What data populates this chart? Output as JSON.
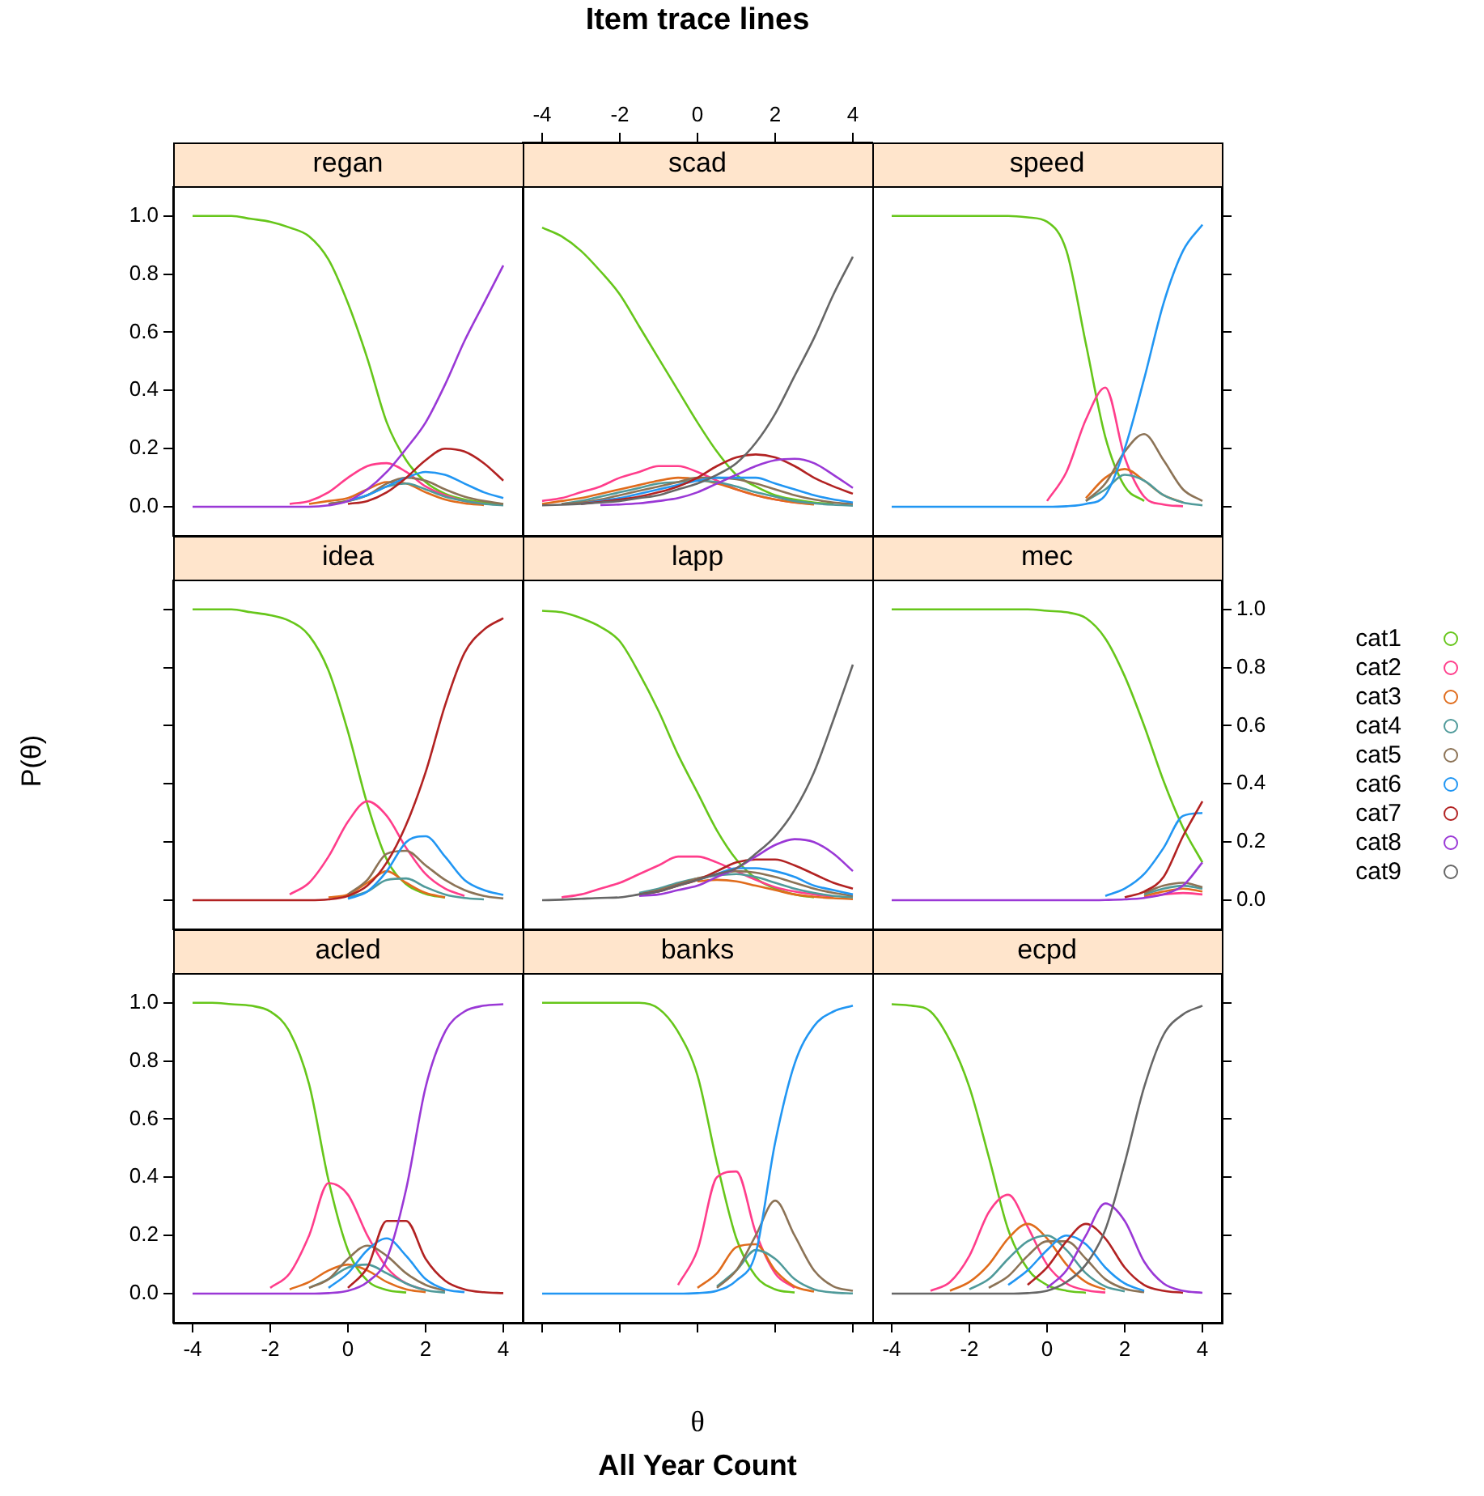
{
  "chart_data": [
    {
      "type": "line",
      "title": "regan",
      "x": [
        -4,
        -3.5,
        -3,
        -2.5,
        -2,
        -1.5,
        -1,
        -0.5,
        0,
        0.5,
        1,
        1.5,
        2,
        2.5,
        3,
        3.5,
        4
      ],
      "xlim": [
        -4.5,
        4.5
      ],
      "ylim": [
        -0.1,
        1.1
      ],
      "yticks": [
        {
          "value": 0,
          "label": "0.0"
        },
        0.2,
        0.4,
        0.6,
        0.8,
        {
          "value": 1,
          "label": "1.0"
        }
      ],
      "tick_labels": "y",
      "series": [
        {
          "color": "#66c61a",
          "values": [
            1,
            1,
            1,
            0.99,
            0.98,
            0.96,
            0.93,
            0.85,
            0.7,
            0.51,
            0.29,
            0.16,
            0.085,
            0.045,
            0.025,
            0.015,
            0.01
          ]
        },
        {
          "color": "#ff3d8b",
          "values": [
            null,
            null,
            null,
            null,
            null,
            0.01,
            0.02,
            0.05,
            0.1,
            0.14,
            0.15,
            0.12,
            0.07,
            0.04,
            0.02,
            0.01,
            null
          ]
        },
        {
          "color": "#e06c1c",
          "values": [
            null,
            null,
            null,
            null,
            null,
            null,
            0.01,
            0.02,
            0.03,
            0.06,
            0.085,
            0.08,
            0.05,
            0.025,
            0.012,
            0.006,
            null
          ]
        },
        {
          "color": "#4f9a9a",
          "values": [
            null,
            null,
            null,
            null,
            null,
            null,
            null,
            0.01,
            0.02,
            0.04,
            0.07,
            0.08,
            0.06,
            0.035,
            0.02,
            0.01,
            0.005
          ]
        },
        {
          "color": "#8c7356",
          "values": [
            null,
            null,
            null,
            null,
            null,
            null,
            null,
            0.01,
            0.02,
            0.04,
            0.08,
            0.1,
            0.09,
            0.06,
            0.035,
            0.02,
            0.01
          ]
        },
        {
          "color": "#2196f3",
          "values": [
            null,
            null,
            null,
            null,
            null,
            null,
            null,
            null,
            0.02,
            0.04,
            0.07,
            0.1,
            0.12,
            0.11,
            0.08,
            0.05,
            0.03
          ]
        },
        {
          "color": "#b22222",
          "values": [
            null,
            null,
            null,
            null,
            null,
            null,
            null,
            null,
            0.01,
            0.02,
            0.05,
            0.1,
            0.16,
            0.2,
            0.19,
            0.15,
            0.09
          ]
        },
        {
          "color": "#9a38d6",
          "values": [
            0,
            0,
            0,
            0,
            0,
            0,
            0,
            0.005,
            0.02,
            0.06,
            0.12,
            0.2,
            0.29,
            0.42,
            0.57,
            0.7,
            0.83
          ]
        }
      ]
    },
    {
      "type": "line",
      "title": "scad",
      "x": [
        -4,
        -3.5,
        -3,
        -2.5,
        -2,
        -1.5,
        -1,
        -0.5,
        0,
        0.5,
        1,
        1.5,
        2,
        2.5,
        3,
        3.5,
        4
      ],
      "xlim": [
        -4.5,
        4.5
      ],
      "x2lim": [
        -4.5,
        4.5
      ],
      "x2ticks": [
        -4,
        -2,
        0,
        2,
        4
      ],
      "ylim": [
        -0.1,
        1.1
      ],
      "tick_labels": "x",
      "series": [
        {
          "color": "#66c61a",
          "values": [
            0.96,
            0.93,
            0.88,
            0.81,
            0.73,
            0.62,
            0.51,
            0.4,
            0.29,
            0.19,
            0.11,
            0.07,
            0.04,
            0.025,
            0.015,
            0.01,
            null
          ]
        },
        {
          "color": "#ff3d8b",
          "values": [
            0.02,
            0.03,
            0.05,
            0.07,
            0.1,
            0.12,
            0.14,
            0.14,
            0.12,
            0.09,
            0.06,
            0.04,
            0.025,
            0.015,
            0.01,
            null,
            null
          ]
        },
        {
          "color": "#e06c1c",
          "values": [
            0.01,
            0.02,
            0.03,
            0.045,
            0.06,
            0.075,
            0.09,
            0.1,
            0.095,
            0.08,
            0.06,
            0.04,
            0.025,
            0.015,
            0.008,
            null,
            null
          ]
        },
        {
          "color": "#4f9a9a",
          "values": [
            null,
            0.01,
            0.02,
            0.035,
            0.05,
            0.065,
            0.08,
            0.085,
            0.09,
            0.085,
            0.07,
            0.05,
            0.035,
            0.02,
            0.012,
            0.007,
            0.004
          ]
        },
        {
          "color": "#8c7356",
          "values": [
            null,
            0.01,
            0.015,
            0.025,
            0.04,
            0.055,
            0.07,
            0.085,
            0.1,
            0.1,
            0.095,
            0.08,
            0.06,
            0.04,
            0.025,
            0.015,
            0.01
          ]
        },
        {
          "color": "#2196f3",
          "values": [
            null,
            null,
            0.01,
            0.02,
            0.03,
            0.045,
            0.06,
            0.075,
            0.09,
            0.1,
            0.1,
            0.1,
            0.08,
            0.06,
            0.04,
            0.025,
            0.015
          ]
        },
        {
          "color": "#b22222",
          "values": [
            null,
            null,
            0.01,
            0.017,
            0.025,
            0.035,
            0.05,
            0.07,
            0.1,
            0.14,
            0.17,
            0.18,
            0.17,
            0.14,
            0.1,
            0.07,
            0.045
          ]
        },
        {
          "color": "#9a38d6",
          "values": [
            null,
            null,
            null,
            0.006,
            0.008,
            0.012,
            0.02,
            0.03,
            0.05,
            0.08,
            0.11,
            0.14,
            0.16,
            0.165,
            0.15,
            0.11,
            0.065
          ]
        },
        {
          "color": "#666666",
          "values": [
            0.005,
            0.007,
            0.01,
            0.015,
            0.02,
            0.03,
            0.04,
            0.06,
            0.08,
            0.11,
            0.15,
            0.22,
            0.32,
            0.45,
            0.58,
            0.73,
            0.86
          ]
        }
      ]
    },
    {
      "type": "line",
      "title": "speed",
      "x": [
        -4,
        -3.5,
        -3,
        -2.5,
        -2,
        -1.5,
        -1,
        -0.5,
        0,
        0.5,
        1,
        1.5,
        2,
        2.5,
        3,
        3.5,
        4
      ],
      "xlim": [
        -4.5,
        4.5
      ],
      "y2lim": [
        -0.1,
        1.1
      ],
      "y2ticks": [
        {
          "value": 0,
          "label": null
        },
        {
          "value": 0.2,
          "label": null
        },
        {
          "value": 0.4,
          "label": null
        },
        {
          "value": 0.6,
          "label": null
        },
        {
          "value": 0.8,
          "label": null
        },
        {
          "value": 1,
          "label": null
        }
      ],
      "tick_labels": false,
      "series": [
        {
          "color": "#66c61a",
          "axis": "y2",
          "values": [
            1,
            1,
            1,
            1,
            1,
            1,
            1,
            0.995,
            0.98,
            0.88,
            0.56,
            0.24,
            0.07,
            0.02,
            null,
            null,
            null
          ]
        },
        {
          "color": "#ff3d8b",
          "axis": "y2",
          "values": [
            null,
            null,
            null,
            null,
            null,
            null,
            null,
            null,
            0.02,
            0.12,
            0.3,
            0.41,
            0.17,
            0.035,
            0.008,
            0.002,
            null
          ]
        },
        {
          "color": "#e06c1c",
          "axis": "y2",
          "values": [
            null,
            null,
            null,
            null,
            null,
            null,
            null,
            null,
            null,
            null,
            0.03,
            0.1,
            0.13,
            0.09,
            0.04,
            0.015,
            null
          ]
        },
        {
          "color": "#4f9a9a",
          "axis": "y2",
          "values": [
            null,
            null,
            null,
            null,
            null,
            null,
            null,
            null,
            null,
            null,
            0.02,
            0.06,
            0.11,
            0.09,
            0.04,
            0.015,
            0.005
          ]
        },
        {
          "color": "#8c7356",
          "axis": "y2",
          "values": [
            null,
            null,
            null,
            null,
            null,
            null,
            null,
            null,
            null,
            null,
            0.02,
            0.08,
            0.19,
            0.25,
            0.16,
            0.06,
            0.02
          ]
        },
        {
          "color": "#2196f3",
          "axis": "y2",
          "values": [
            0,
            0,
            0,
            0,
            0,
            0,
            0,
            0,
            0,
            0.002,
            0.01,
            0.04,
            0.2,
            0.44,
            0.7,
            0.88,
            0.97
          ]
        }
      ]
    },
    {
      "type": "line",
      "title": "idea",
      "x": [
        -4,
        -3.5,
        -3,
        -2.5,
        -2,
        -1.5,
        -1,
        -0.5,
        0,
        0.5,
        1,
        1.5,
        2,
        2.5,
        3,
        3.5,
        4
      ],
      "xlim": [
        -4.5,
        4.5
      ],
      "ylim": [
        -0.1,
        1.1
      ],
      "yticks": [
        {
          "value": 0,
          "label": null
        },
        {
          "value": 0.2,
          "label": null
        },
        {
          "value": 0.4,
          "label": null
        },
        {
          "value": 0.6,
          "label": null
        },
        {
          "value": 0.8,
          "label": null
        },
        {
          "value": 1,
          "label": null
        }
      ],
      "tick_labels": false,
      "series": [
        {
          "color": "#66c61a",
          "values": [
            1,
            1,
            1,
            0.99,
            0.98,
            0.96,
            0.91,
            0.79,
            0.58,
            0.33,
            0.14,
            0.055,
            0.022,
            0.009,
            null,
            null,
            null
          ]
        },
        {
          "color": "#ff3d8b",
          "values": [
            null,
            null,
            null,
            null,
            null,
            0.02,
            0.06,
            0.15,
            0.27,
            0.34,
            0.29,
            0.18,
            0.09,
            0.04,
            0.015,
            null,
            null
          ]
        },
        {
          "color": "#e06c1c",
          "values": [
            null,
            null,
            null,
            null,
            null,
            null,
            null,
            0.01,
            0.02,
            0.06,
            0.1,
            0.06,
            0.025,
            0.01,
            null,
            null,
            null
          ]
        },
        {
          "color": "#4f9a9a",
          "values": [
            null,
            null,
            null,
            null,
            null,
            null,
            null,
            null,
            0.01,
            0.03,
            0.07,
            0.075,
            0.045,
            0.02,
            0.008,
            0.003,
            null
          ]
        },
        {
          "color": "#8c7356",
          "values": [
            null,
            null,
            null,
            null,
            null,
            null,
            null,
            null,
            0.02,
            0.07,
            0.16,
            0.17,
            0.12,
            0.07,
            0.035,
            0.015,
            0.006
          ]
        },
        {
          "color": "#2196f3",
          "values": [
            null,
            null,
            null,
            null,
            null,
            null,
            null,
            null,
            0.005,
            0.03,
            0.1,
            0.2,
            0.22,
            0.15,
            0.07,
            0.035,
            0.018
          ]
        },
        {
          "color": "#b22222",
          "values": [
            0,
            0,
            0,
            0,
            0,
            0,
            0,
            0.003,
            0.015,
            0.05,
            0.13,
            0.26,
            0.44,
            0.67,
            0.85,
            0.93,
            0.97
          ]
        }
      ]
    },
    {
      "type": "line",
      "title": "lapp",
      "x": [
        -4,
        -3.5,
        -3,
        -2.5,
        -2,
        -1.5,
        -1,
        -0.5,
        0,
        0.5,
        1,
        1.5,
        2,
        2.5,
        3,
        3.5,
        4
      ],
      "xlim": [
        -4.5,
        4.5
      ],
      "ylim": [
        -0.1,
        1.1
      ],
      "tick_labels": false,
      "legend": "right",
      "series": [
        {
          "name": "cat1",
          "color": "#66c61a",
          "values": [
            0.995,
            0.99,
            0.97,
            0.94,
            0.89,
            0.78,
            0.65,
            0.5,
            0.37,
            0.24,
            0.14,
            0.075,
            0.04,
            0.02,
            0.01,
            null,
            null
          ]
        },
        {
          "name": "cat2",
          "color": "#ff3d8b",
          "values": [
            null,
            0.01,
            0.02,
            0.04,
            0.06,
            0.09,
            0.12,
            0.15,
            0.15,
            0.13,
            0.1,
            0.07,
            0.045,
            0.03,
            0.02,
            0.012,
            null
          ]
        },
        {
          "name": "cat3",
          "color": "#e06c1c",
          "values": [
            null,
            null,
            null,
            null,
            null,
            null,
            null,
            null,
            0.065,
            0.07,
            0.065,
            0.05,
            0.035,
            0.02,
            0.012,
            0.007,
            0.004
          ]
        },
        {
          "name": "cat4",
          "color": "#4f9a9a",
          "values": [
            null,
            null,
            null,
            null,
            null,
            0.025,
            0.04,
            0.06,
            0.075,
            0.085,
            0.09,
            0.08,
            0.06,
            0.04,
            0.025,
            0.015,
            0.01
          ]
        },
        {
          "name": "cat5",
          "color": "#8c7356",
          "values": [
            null,
            null,
            null,
            null,
            null,
            0.02,
            0.035,
            0.055,
            0.075,
            0.09,
            0.1,
            0.095,
            0.08,
            0.06,
            0.04,
            0.025,
            0.015
          ]
        },
        {
          "name": "cat6",
          "color": "#2196f3",
          "values": [
            null,
            null,
            null,
            null,
            null,
            null,
            null,
            null,
            0.07,
            0.09,
            0.11,
            0.11,
            0.1,
            0.08,
            0.05,
            0.035,
            0.02
          ]
        },
        {
          "name": "cat7",
          "color": "#b22222",
          "values": [
            null,
            null,
            null,
            null,
            null,
            0.02,
            0.03,
            0.05,
            0.07,
            0.1,
            0.13,
            0.14,
            0.14,
            0.12,
            0.09,
            0.06,
            0.04
          ]
        },
        {
          "name": "cat8",
          "color": "#9a38d6",
          "values": [
            null,
            null,
            null,
            null,
            null,
            0.015,
            0.02,
            0.035,
            0.05,
            0.08,
            0.11,
            0.15,
            0.19,
            0.21,
            0.2,
            0.16,
            0.1
          ]
        },
        {
          "name": "cat9",
          "color": "#666666",
          "values": [
            0,
            0.002,
            0.005,
            0.008,
            0.01,
            0.02,
            0.03,
            0.05,
            0.07,
            0.09,
            0.11,
            0.16,
            0.22,
            0.31,
            0.44,
            0.62,
            0.81
          ]
        }
      ]
    },
    {
      "type": "line",
      "title": "mec",
      "x": [
        -4,
        -3.5,
        -3,
        -2.5,
        -2,
        -1.5,
        -1,
        -0.5,
        0,
        0.5,
        1,
        1.5,
        2,
        2.5,
        3,
        3.5,
        4
      ],
      "xlim": [
        -4.5,
        4.5
      ],
      "y2lim": [
        -0.1,
        1.1
      ],
      "y2ticks": [
        {
          "value": 0,
          "label": "0.0"
        },
        0.2,
        0.4,
        0.6,
        0.8,
        {
          "value": 1,
          "label": "1.0"
        }
      ],
      "tick_labels": "y",
      "series": [
        {
          "color": "#66c61a",
          "axis": "y2",
          "values": [
            1,
            1,
            1,
            1,
            1,
            1,
            1,
            1,
            0.995,
            0.99,
            0.97,
            0.9,
            0.77,
            0.6,
            0.41,
            0.25,
            0.13
          ]
        },
        {
          "color": "#ff3d8b",
          "axis": "y2",
          "values": [
            null,
            null,
            null,
            null,
            null,
            null,
            null,
            null,
            null,
            null,
            null,
            null,
            null,
            0.01,
            0.02,
            0.025,
            0.02
          ]
        },
        {
          "color": "#e06c1c",
          "axis": "y2",
          "values": [
            null,
            null,
            null,
            null,
            null,
            null,
            null,
            null,
            null,
            null,
            null,
            null,
            null,
            0.015,
            0.03,
            0.04,
            0.03
          ]
        },
        {
          "color": "#4f9a9a",
          "axis": "y2",
          "values": [
            null,
            null,
            null,
            null,
            null,
            null,
            null,
            null,
            null,
            null,
            null,
            null,
            null,
            0.02,
            0.04,
            0.05,
            0.04
          ]
        },
        {
          "color": "#8c7356",
          "axis": "y2",
          "values": [
            null,
            null,
            null,
            null,
            null,
            null,
            null,
            null,
            null,
            null,
            null,
            null,
            null,
            0.025,
            0.05,
            0.06,
            0.045
          ]
        },
        {
          "color": "#2196f3",
          "axis": "y2",
          "values": [
            null,
            null,
            null,
            null,
            null,
            null,
            null,
            null,
            null,
            null,
            null,
            0.015,
            0.04,
            0.09,
            0.18,
            0.29,
            0.3
          ]
        },
        {
          "color": "#b22222",
          "axis": "y2",
          "values": [
            null,
            null,
            null,
            null,
            null,
            null,
            null,
            null,
            null,
            null,
            null,
            null,
            0.01,
            0.03,
            0.08,
            0.22,
            0.34
          ]
        },
        {
          "color": "#9a38d6",
          "axis": "y2",
          "values": [
            0,
            0,
            0,
            0,
            0,
            0,
            0,
            0,
            0,
            0,
            0,
            0.001,
            0.003,
            0.008,
            0.02,
            0.05,
            0.13
          ]
        }
      ]
    },
    {
      "type": "line",
      "title": "acled",
      "x": [
        -4,
        -3.5,
        -3,
        -2.5,
        -2,
        -1.5,
        -1,
        -0.5,
        0,
        0.5,
        1,
        1.5,
        2,
        2.5,
        3,
        3.5,
        4
      ],
      "xlim": [
        -4.5,
        4.5
      ],
      "xticks": [
        -4,
        -2,
        0,
        2,
        4
      ],
      "ylim": [
        -0.1,
        1.1
      ],
      "yticks": [
        {
          "value": 0,
          "label": "0.0"
        },
        0.2,
        0.4,
        0.6,
        0.8,
        {
          "value": 1,
          "label": "1.0"
        }
      ],
      "series": [
        {
          "color": "#66c61a",
          "values": [
            1,
            1,
            0.995,
            0.99,
            0.97,
            0.9,
            0.72,
            0.39,
            0.15,
            0.045,
            0.013,
            0.004,
            null,
            null,
            null,
            null,
            null
          ]
        },
        {
          "color": "#ff3d8b",
          "values": [
            null,
            null,
            null,
            null,
            0.02,
            0.07,
            0.2,
            0.38,
            0.34,
            0.2,
            0.09,
            0.035,
            0.013,
            null,
            null,
            null,
            null
          ]
        },
        {
          "color": "#e06c1c",
          "values": [
            null,
            null,
            null,
            null,
            null,
            0.015,
            0.04,
            0.08,
            0.1,
            0.08,
            0.04,
            0.015,
            0.005,
            null,
            null,
            null,
            null
          ]
        },
        {
          "color": "#4f9a9a",
          "values": [
            null,
            null,
            null,
            null,
            null,
            null,
            0.02,
            0.05,
            0.09,
            0.1,
            0.07,
            0.035,
            0.012,
            0.004,
            null,
            null,
            null
          ]
        },
        {
          "color": "#8c7356",
          "values": [
            null,
            null,
            null,
            null,
            null,
            null,
            0.02,
            0.05,
            0.12,
            0.165,
            0.13,
            0.07,
            0.03,
            0.01,
            null,
            null,
            null
          ]
        },
        {
          "color": "#2196f3",
          "values": [
            null,
            null,
            null,
            null,
            null,
            null,
            null,
            0.02,
            0.07,
            0.15,
            0.19,
            0.13,
            0.05,
            0.015,
            0.005,
            null,
            null
          ]
        },
        {
          "color": "#b22222",
          "values": [
            null,
            null,
            null,
            null,
            null,
            null,
            null,
            null,
            0.02,
            0.09,
            0.25,
            0.25,
            0.12,
            0.045,
            0.015,
            0.005,
            0.002
          ]
        },
        {
          "color": "#9a38d6",
          "values": [
            0,
            0,
            0,
            0,
            0,
            0,
            0,
            0.002,
            0.01,
            0.04,
            0.12,
            0.36,
            0.71,
            0.9,
            0.97,
            0.99,
            0.995
          ]
        }
      ]
    },
    {
      "type": "line",
      "title": "banks",
      "x": [
        -4,
        -3.5,
        -3,
        -2.5,
        -2,
        -1.5,
        -1,
        -0.5,
        0,
        0.5,
        1,
        1.5,
        2,
        2.5,
        3,
        3.5,
        4
      ],
      "xlim": [
        -4.5,
        4.5
      ],
      "xticks": [
        {
          "value": -4,
          "label": null
        },
        {
          "value": -2,
          "label": null
        },
        {
          "value": 0,
          "label": null
        },
        {
          "value": 2,
          "label": null
        },
        {
          "value": 4,
          "label": null
        }
      ],
      "ylim": [
        -0.1,
        1.1
      ],
      "tick_labels": false,
      "series": [
        {
          "color": "#66c61a",
          "values": [
            1,
            1,
            1,
            1,
            1,
            1,
            0.98,
            0.9,
            0.75,
            0.45,
            0.19,
            0.06,
            0.015,
            0.004,
            null,
            null,
            null
          ]
        },
        {
          "color": "#ff3d8b",
          "values": [
            null,
            null,
            null,
            null,
            null,
            null,
            null,
            0.03,
            0.15,
            0.4,
            0.42,
            0.21,
            0.07,
            0.02,
            null,
            null,
            null
          ]
        },
        {
          "color": "#e06c1c",
          "values": [
            null,
            null,
            null,
            null,
            null,
            null,
            null,
            null,
            0.02,
            0.07,
            0.16,
            0.17,
            0.08,
            0.025,
            0.007,
            null,
            null
          ]
        },
        {
          "color": "#4f9a9a",
          "values": [
            null,
            null,
            null,
            null,
            null,
            null,
            null,
            null,
            null,
            0.025,
            0.08,
            0.15,
            0.12,
            0.05,
            0.015,
            0.004,
            0.001
          ]
        },
        {
          "color": "#8c7356",
          "values": [
            null,
            null,
            null,
            null,
            null,
            null,
            null,
            null,
            null,
            0.02,
            0.08,
            0.2,
            0.32,
            0.2,
            0.08,
            0.025,
            0.01
          ]
        },
        {
          "color": "#2196f3",
          "values": [
            0,
            0,
            0,
            0,
            0,
            0,
            0,
            0,
            0.002,
            0.01,
            0.045,
            0.14,
            0.52,
            0.79,
            0.92,
            0.97,
            0.99
          ]
        }
      ]
    },
    {
      "type": "line",
      "title": "ecpd",
      "x": [
        -4,
        -3.5,
        -3,
        -2.5,
        -2,
        -1.5,
        -1,
        -0.5,
        0,
        0.5,
        1,
        1.5,
        2,
        2.5,
        3,
        3.5,
        4
      ],
      "xlim": [
        -4.5,
        4.5
      ],
      "xticks": [
        -4,
        -2,
        0,
        2,
        4
      ],
      "y2lim": [
        -0.1,
        1.1
      ],
      "y2ticks": [
        {
          "value": 0,
          "label": null
        },
        {
          "value": 0.2,
          "label": null
        },
        {
          "value": 0.4,
          "label": null
        },
        {
          "value": 0.6,
          "label": null
        },
        {
          "value": 0.8,
          "label": null
        },
        {
          "value": 1,
          "label": null
        }
      ],
      "tick_labels": "x",
      "series": [
        {
          "color": "#66c61a",
          "axis": "y2",
          "values": [
            0.995,
            0.99,
            0.97,
            0.87,
            0.71,
            0.47,
            0.22,
            0.085,
            0.03,
            0.01,
            0.003,
            null,
            null,
            null,
            null,
            null,
            null
          ]
        },
        {
          "color": "#ff3d8b",
          "axis": "y2",
          "values": [
            null,
            null,
            0.01,
            0.04,
            0.13,
            0.28,
            0.34,
            0.23,
            0.1,
            0.035,
            0.012,
            0.004,
            null,
            null,
            null,
            null,
            null
          ]
        },
        {
          "color": "#e06c1c",
          "axis": "y2",
          "values": [
            null,
            null,
            null,
            0.01,
            0.04,
            0.1,
            0.19,
            0.24,
            0.19,
            0.1,
            0.04,
            0.014,
            null,
            null,
            null,
            null,
            null
          ]
        },
        {
          "color": "#4f9a9a",
          "axis": "y2",
          "values": [
            null,
            null,
            null,
            null,
            0.015,
            0.05,
            0.12,
            0.18,
            0.2,
            0.15,
            0.07,
            0.025,
            0.008,
            null,
            null,
            null,
            null
          ]
        },
        {
          "color": "#8c7356",
          "axis": "y2",
          "values": [
            null,
            null,
            null,
            null,
            null,
            0.02,
            0.06,
            0.13,
            0.18,
            0.18,
            0.12,
            0.05,
            0.017,
            0.005,
            null,
            null,
            null
          ]
        },
        {
          "color": "#2196f3",
          "axis": "y2",
          "values": [
            null,
            null,
            null,
            null,
            null,
            null,
            0.03,
            0.08,
            0.15,
            0.2,
            0.17,
            0.09,
            0.035,
            0.01,
            null,
            null,
            null
          ]
        },
        {
          "color": "#b22222",
          "axis": "y2",
          "values": [
            null,
            null,
            null,
            null,
            null,
            null,
            null,
            0.03,
            0.09,
            0.18,
            0.24,
            0.19,
            0.09,
            0.03,
            0.01,
            0.003,
            null
          ]
        },
        {
          "color": "#9a38d6",
          "axis": "y2",
          "values": [
            null,
            null,
            null,
            null,
            null,
            null,
            null,
            null,
            0.02,
            0.08,
            0.2,
            0.31,
            0.25,
            0.11,
            0.035,
            0.01,
            0.003
          ]
        },
        {
          "color": "#666666",
          "axis": "y2",
          "values": [
            0,
            0,
            0,
            0,
            0,
            0,
            0,
            0.002,
            0.01,
            0.04,
            0.1,
            0.22,
            0.45,
            0.71,
            0.89,
            0.96,
            0.99
          ]
        }
      ]
    },
    {
      "type": "other",
      "title": "Item trace lines",
      "xlabel": "θ",
      "ylabel": "P(θ)",
      "annotations": [
        "All Year Count"
      ]
    }
  ]
}
